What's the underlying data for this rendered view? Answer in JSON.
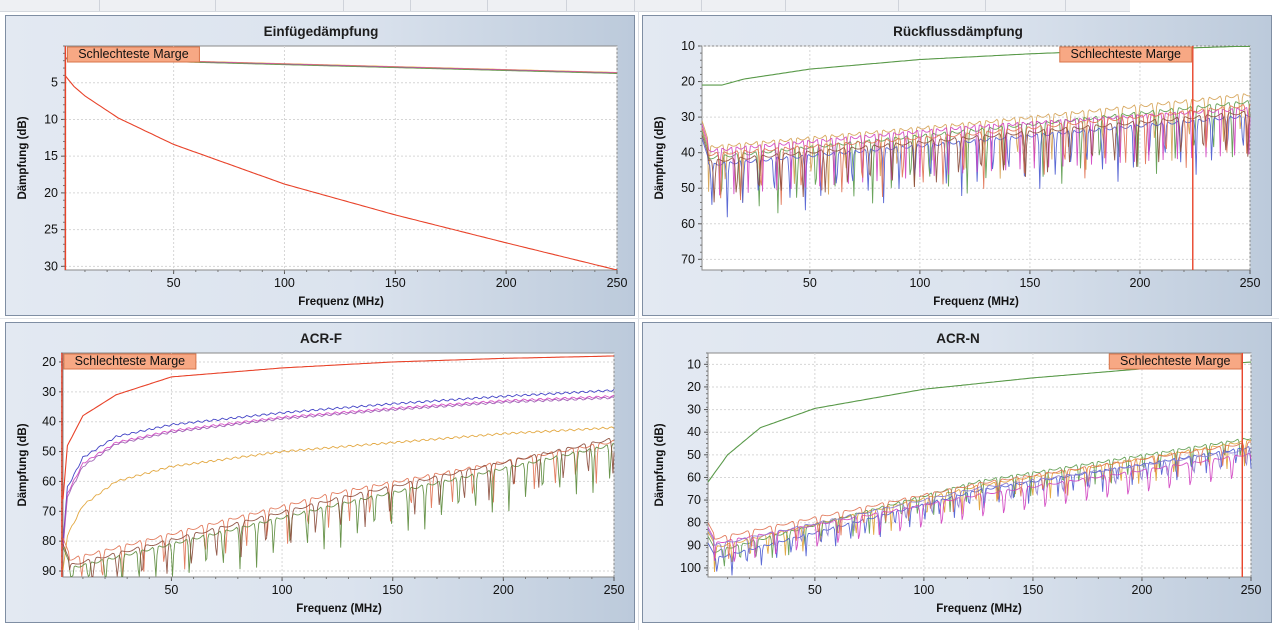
{
  "marge_label": "Schlechteste Marge",
  "chart_data": [
    {
      "id": "einfuege",
      "type": "line",
      "title": "Einfügedämpfung",
      "xlabel": "Frequenz (MHz)",
      "ylabel": "Dämpfung (dB)",
      "xlim": [
        1,
        250
      ],
      "ylim": [
        0,
        30.5
      ],
      "y_inverted": true,
      "xticks": [
        50,
        100,
        150,
        200,
        250
      ],
      "yticks": [
        5,
        10,
        15,
        20,
        25,
        30
      ],
      "grid": true,
      "marker_x": 1.2,
      "limit": {
        "color": "#e8432a",
        "x": [
          1,
          5,
          10,
          25,
          50,
          100,
          150,
          200,
          250
        ],
        "y": [
          4.0,
          5.5,
          6.8,
          9.8,
          13.4,
          18.8,
          23.0,
          26.8,
          30.5
        ]
      },
      "series": [
        {
          "color": "#e8a030",
          "x": [
            1,
            50,
            100,
            150,
            200,
            250
          ],
          "y": [
            1.6,
            2.0,
            2.4,
            2.8,
            3.2,
            3.6
          ]
        },
        {
          "color": "#4a5ad0",
          "x": [
            1,
            50,
            100,
            150,
            200,
            250
          ],
          "y": [
            1.7,
            2.1,
            2.5,
            2.9,
            3.3,
            3.7
          ]
        },
        {
          "color": "#c84aa8",
          "x": [
            1,
            50,
            100,
            150,
            200,
            250
          ],
          "y": [
            1.65,
            2.05,
            2.45,
            2.85,
            3.25,
            3.65
          ]
        },
        {
          "color": "#6a9a4a",
          "x": [
            1,
            50,
            100,
            150,
            200,
            250
          ],
          "y": [
            1.75,
            2.15,
            2.55,
            2.95,
            3.35,
            3.75
          ]
        }
      ]
    },
    {
      "id": "rueckfluss",
      "type": "line",
      "title": "Rückflussdämpfung",
      "xlabel": "Frequenz (MHz)",
      "ylabel": "Dämpfung (dB)",
      "xlim": [
        1,
        250
      ],
      "ylim": [
        10,
        73
      ],
      "y_inverted": true,
      "xticks": [
        50,
        100,
        150,
        200,
        250
      ],
      "yticks": [
        10,
        20,
        30,
        40,
        50,
        60,
        70
      ],
      "grid": true,
      "marker_x": 224,
      "limit": {
        "color": "#5a9a4a",
        "x": [
          1,
          10,
          20,
          50,
          100,
          150,
          200,
          250
        ],
        "y": [
          21,
          21,
          19.3,
          16.5,
          13.8,
          12.2,
          11.0,
          10.0
        ]
      },
      "series": [
        {
          "color": "#d4a050",
          "base": [
            37,
            30,
            22
          ],
          "period": 7.8,
          "depth": 18
        },
        {
          "color": "#5a9a4a",
          "base": [
            40,
            32,
            24
          ],
          "period": 8.6,
          "depth": 20
        },
        {
          "color": "#4a5ad0",
          "base": [
            42,
            35,
            28
          ],
          "period": 7.1,
          "depth": 17
        },
        {
          "color": "#d040c0",
          "base": [
            38,
            31,
            26
          ],
          "period": 6.5,
          "depth": 16
        },
        {
          "color": "#e07050",
          "base": [
            39,
            33,
            25
          ],
          "period": 9.2,
          "depth": 18
        },
        {
          "color": "#8a4a3a",
          "base": [
            41,
            34,
            27
          ],
          "period": 10.1,
          "depth": 15
        }
      ]
    },
    {
      "id": "acrf",
      "type": "line",
      "title": "ACR-F",
      "xlabel": "Frequenz (MHz)",
      "ylabel": "Dämpfung (dB)",
      "xlim": [
        1,
        250
      ],
      "ylim": [
        17,
        92
      ],
      "y_inverted": true,
      "xticks": [
        50,
        100,
        150,
        200,
        250
      ],
      "yticks": [
        20,
        30,
        40,
        50,
        60,
        70,
        80,
        90
      ],
      "grid": true,
      "marker_x": 0.5,
      "limit": {
        "color": "#e8432a",
        "x": [
          1,
          3,
          10,
          25,
          50,
          100,
          150,
          200,
          250
        ],
        "y": [
          66,
          48,
          38,
          31,
          25,
          22,
          20,
          18.8,
          18
        ]
      },
      "series": [
        {
          "color": "#3030c0",
          "x": [
            1,
            3,
            10,
            25,
            50,
            100,
            150,
            200,
            250
          ],
          "y": [
            80,
            62,
            52,
            45,
            41,
            37,
            34,
            31.5,
            29.5
          ]
        },
        {
          "color": "#d040c0",
          "x": [
            1,
            3,
            10,
            25,
            50,
            100,
            150,
            200,
            250
          ],
          "y": [
            82,
            64,
            54,
            47,
            43,
            38.5,
            35.5,
            33,
            31.5
          ]
        },
        {
          "color": "#9a5ab0",
          "x": [
            1,
            3,
            10,
            25,
            50,
            100,
            150,
            200,
            250
          ],
          "y": [
            83,
            65,
            55,
            47.5,
            43.5,
            39,
            36,
            33.5,
            32
          ]
        },
        {
          "color": "#e0a030",
          "x": [
            1,
            3,
            10,
            25,
            50,
            100,
            150,
            200,
            250
          ],
          "y": [
            90,
            78,
            68,
            60,
            55,
            50,
            47,
            44,
            42
          ]
        },
        {
          "color": "#e07050",
          "wave": true,
          "base": [
            85,
            62,
            45
          ],
          "period": 9.3,
          "depth": 15
        },
        {
          "color": "#5a8a3a",
          "wave": true,
          "base": [
            88,
            66,
            46
          ],
          "period": 7.6,
          "depth": 18
        },
        {
          "color": "#8a4a3a",
          "wave": true,
          "base": [
            87,
            64,
            44
          ],
          "period": 11.2,
          "depth": 14
        }
      ]
    },
    {
      "id": "acrn",
      "type": "line",
      "title": "ACR-N",
      "xlabel": "Frequenz (MHz)",
      "ylabel": "Dämpfung (dB)",
      "xlim": [
        1,
        250
      ],
      "ylim": [
        5,
        104
      ],
      "y_inverted": true,
      "xticks": [
        50,
        100,
        150,
        200,
        250
      ],
      "yticks": [
        10,
        20,
        30,
        40,
        50,
        60,
        70,
        80,
        90,
        100
      ],
      "grid": true,
      "marker_x": 246,
      "limit": {
        "color": "#5a9a4a",
        "x": [
          1,
          10,
          25,
          50,
          100,
          150,
          200,
          250
        ],
        "y": [
          62,
          50,
          38,
          29.5,
          21,
          16,
          12,
          9
        ]
      },
      "series": [
        {
          "color": "#e0a030",
          "base": [
            90,
            62,
            42
          ],
          "period": 8.1,
          "depth": 14
        },
        {
          "color": "#5a9a4a",
          "base": [
            92,
            60,
            41
          ],
          "period": 7.4,
          "depth": 13
        },
        {
          "color": "#4a5ad0",
          "base": [
            95,
            64,
            45
          ],
          "period": 6.8,
          "depth": 12
        },
        {
          "color": "#d040c0",
          "base": [
            88,
            66,
            48
          ],
          "period": 9.5,
          "depth": 17
        },
        {
          "color": "#e07050",
          "base": [
            86,
            61,
            43
          ],
          "period": 10.3,
          "depth": 12
        },
        {
          "color": "#8a7ad0",
          "base": [
            89,
            63,
            46
          ],
          "period": 12.0,
          "depth": 11
        }
      ]
    }
  ]
}
